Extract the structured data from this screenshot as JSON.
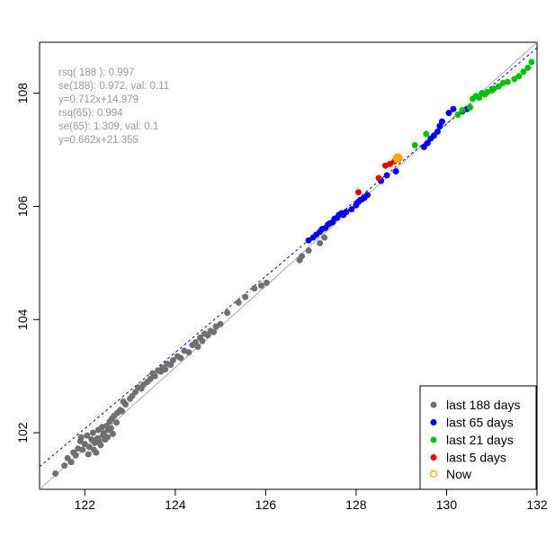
{
  "chart_data": {
    "type": "scatter",
    "title": "",
    "xlabel": "",
    "ylabel": "",
    "xlim": [
      121.0,
      132.0
    ],
    "ylim": [
      101.0,
      108.9
    ],
    "xticks": [
      122,
      124,
      126,
      128,
      130,
      132
    ],
    "yticks": [
      102,
      104,
      106,
      108
    ],
    "grid": false,
    "stats_text": [
      "rsq( 188 ):  0.997",
      "se(188): 0.972, val: 0.11",
      "y=0.712x+14.979",
      "rsq(65): 0.994",
      "se(65): 1.309, val: 0.1",
      "y=0.662x+21.355"
    ],
    "reference_lines": [
      {
        "style": "solid",
        "color": "#aaaaaa",
        "from": [
          121.0,
          101.0
        ],
        "to": [
          132.0,
          108.9
        ]
      },
      {
        "style": "dashed",
        "color": "#0000cc",
        "from": [
          121.0,
          101.4
        ],
        "to": [
          132.0,
          108.8
        ]
      }
    ],
    "legend": {
      "position": "bottom-right",
      "entries": [
        {
          "label": "last 188 days",
          "color": "#707070",
          "marker": "filled-circle"
        },
        {
          "label": "last 65 days",
          "color": "#0000ee",
          "marker": "filled-circle"
        },
        {
          "label": "last 21 days",
          "color": "#00c000",
          "marker": "filled-circle"
        },
        {
          "label": "last 5 days",
          "color": "#ee0000",
          "marker": "filled-circle"
        },
        {
          "label": "Now",
          "color": "#ffa500",
          "marker": "open-circle"
        }
      ]
    },
    "series": [
      {
        "color": "#707070",
        "points": [
          [
            121.35,
            101.28
          ],
          [
            121.55,
            101.42
          ],
          [
            121.62,
            101.55
          ],
          [
            121.7,
            101.48
          ],
          [
            121.75,
            101.65
          ],
          [
            121.8,
            101.6
          ],
          [
            121.85,
            101.72
          ],
          [
            121.9,
            101.85
          ],
          [
            121.92,
            101.92
          ],
          [
            121.95,
            101.7
          ],
          [
            122.0,
            101.8
          ],
          [
            122.05,
            101.95
          ],
          [
            122.08,
            101.62
          ],
          [
            122.1,
            101.75
          ],
          [
            122.15,
            101.88
          ],
          [
            122.18,
            102.0
          ],
          [
            122.2,
            101.7
          ],
          [
            122.22,
            101.82
          ],
          [
            122.25,
            101.65
          ],
          [
            122.28,
            101.9
          ],
          [
            122.3,
            102.05
          ],
          [
            122.32,
            101.85
          ],
          [
            122.35,
            101.78
          ],
          [
            122.38,
            102.1
          ],
          [
            122.4,
            101.95
          ],
          [
            122.42,
            102.0
          ],
          [
            122.45,
            101.88
          ],
          [
            122.48,
            102.12
          ],
          [
            122.5,
            101.92
          ],
          [
            122.52,
            102.05
          ],
          [
            122.55,
            102.2
          ],
          [
            122.58,
            102.08
          ],
          [
            122.6,
            102.25
          ],
          [
            122.62,
            101.98
          ],
          [
            122.65,
            102.3
          ],
          [
            122.7,
            102.18
          ],
          [
            122.72,
            102.35
          ],
          [
            122.78,
            102.4
          ],
          [
            122.82,
            102.38
          ],
          [
            122.85,
            102.55
          ],
          [
            122.9,
            102.5
          ],
          [
            123.0,
            102.6
          ],
          [
            123.05,
            102.65
          ],
          [
            123.12,
            102.72
          ],
          [
            123.18,
            102.8
          ],
          [
            123.25,
            102.78
          ],
          [
            123.3,
            102.85
          ],
          [
            123.38,
            102.9
          ],
          [
            123.45,
            102.95
          ],
          [
            123.5,
            103.05
          ],
          [
            123.55,
            103.0
          ],
          [
            123.62,
            103.1
          ],
          [
            123.68,
            103.08
          ],
          [
            123.72,
            103.15
          ],
          [
            123.78,
            103.12
          ],
          [
            123.82,
            103.22
          ],
          [
            123.9,
            103.2
          ],
          [
            123.95,
            103.28
          ],
          [
            124.05,
            103.35
          ],
          [
            124.12,
            103.32
          ],
          [
            124.2,
            103.45
          ],
          [
            124.3,
            103.42
          ],
          [
            124.38,
            103.55
          ],
          [
            124.45,
            103.6
          ],
          [
            124.5,
            103.52
          ],
          [
            124.55,
            103.68
          ],
          [
            124.6,
            103.62
          ],
          [
            124.65,
            103.75
          ],
          [
            124.72,
            103.72
          ],
          [
            124.78,
            103.8
          ],
          [
            124.85,
            103.78
          ],
          [
            124.9,
            103.88
          ],
          [
            125.0,
            103.92
          ],
          [
            125.15,
            104.12
          ],
          [
            125.4,
            104.3
          ],
          [
            125.55,
            104.4
          ],
          [
            125.75,
            104.55
          ],
          [
            125.9,
            104.6
          ],
          [
            126.02,
            104.65
          ],
          [
            126.75,
            105.05
          ],
          [
            126.8,
            105.12
          ],
          [
            126.95,
            105.22
          ],
          [
            127.2,
            105.35
          ],
          [
            127.3,
            105.45
          ]
        ]
      },
      {
        "color": "#0000ee",
        "points": [
          [
            126.95,
            105.4
          ],
          [
            127.05,
            105.45
          ],
          [
            127.12,
            105.5
          ],
          [
            127.2,
            105.55
          ],
          [
            127.25,
            105.6
          ],
          [
            127.32,
            105.62
          ],
          [
            127.38,
            105.68
          ],
          [
            127.42,
            105.7
          ],
          [
            127.48,
            105.72
          ],
          [
            127.52,
            105.78
          ],
          [
            127.58,
            105.8
          ],
          [
            127.62,
            105.85
          ],
          [
            127.68,
            105.88
          ],
          [
            127.72,
            105.85
          ],
          [
            127.78,
            105.9
          ],
          [
            127.9,
            105.95
          ],
          [
            128.0,
            106.02
          ],
          [
            128.05,
            106.08
          ],
          [
            128.12,
            106.12
          ],
          [
            128.18,
            106.15
          ],
          [
            128.25,
            106.2
          ],
          [
            128.55,
            106.45
          ],
          [
            128.68,
            106.55
          ],
          [
            128.88,
            106.62
          ],
          [
            129.5,
            107.05
          ],
          [
            129.58,
            107.12
          ],
          [
            129.65,
            107.2
          ],
          [
            129.72,
            107.25
          ],
          [
            129.8,
            107.32
          ],
          [
            129.85,
            107.42
          ],
          [
            129.9,
            107.5
          ],
          [
            130.05,
            107.65
          ],
          [
            130.15,
            107.72
          ],
          [
            130.35,
            107.68
          ],
          [
            130.45,
            107.72
          ]
        ]
      },
      {
        "color": "#00c000",
        "points": [
          [
            129.3,
            107.08
          ],
          [
            129.55,
            107.28
          ],
          [
            130.25,
            107.62
          ],
          [
            130.35,
            107.7
          ],
          [
            130.52,
            107.75
          ],
          [
            130.58,
            107.9
          ],
          [
            130.65,
            107.95
          ],
          [
            130.72,
            107.92
          ],
          [
            130.78,
            108.0
          ],
          [
            130.85,
            107.98
          ],
          [
            130.9,
            108.02
          ],
          [
            131.0,
            108.05
          ],
          [
            131.05,
            108.08
          ],
          [
            131.15,
            108.12
          ],
          [
            131.25,
            108.18
          ],
          [
            131.35,
            108.2
          ],
          [
            131.5,
            108.25
          ],
          [
            131.6,
            108.3
          ],
          [
            131.7,
            108.38
          ],
          [
            131.8,
            108.45
          ],
          [
            131.88,
            108.55
          ]
        ]
      },
      {
        "color": "#ee0000",
        "points": [
          [
            128.05,
            106.25
          ],
          [
            128.5,
            106.5
          ],
          [
            128.65,
            106.72
          ],
          [
            128.75,
            106.75
          ],
          [
            128.85,
            106.8
          ]
        ]
      }
    ],
    "now_point": {
      "x": 128.92,
      "y": 106.85,
      "color": "#ffa500"
    }
  }
}
